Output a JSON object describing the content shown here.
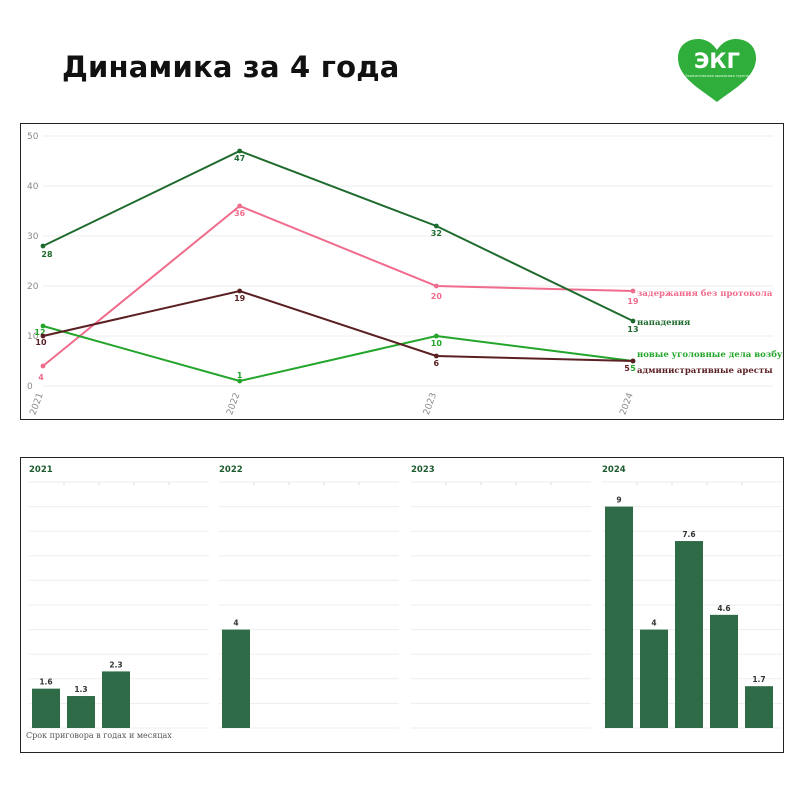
{
  "title": "Динамика за 4 года",
  "logo": {
    "text": "ЭКГ",
    "subtext": "Экологическая кризисная группа",
    "color": "#2fae3b"
  },
  "chart_data": [
    {
      "type": "line",
      "x": [
        "2021",
        "2022",
        "2023",
        "2024"
      ],
      "ylim": [
        0,
        50
      ],
      "yticks": [
        0,
        10,
        20,
        30,
        40,
        50
      ],
      "grid": true,
      "series": [
        {
          "name": "задержания без протокола",
          "values": [
            4,
            36,
            20,
            19
          ],
          "color": "#f06c8c"
        },
        {
          "name": "нападения",
          "values": [
            28,
            47,
            32,
            13
          ],
          "color": "#1f6b2e"
        },
        {
          "name": "новые уголовные дела возбуждены",
          "values": [
            12,
            1,
            10,
            5
          ],
          "color": "#22a52a"
        },
        {
          "name": "административные аресты",
          "values": [
            10,
            19,
            6,
            5
          ],
          "color": "#5a1f22"
        }
      ]
    },
    {
      "type": "bar",
      "caption": "Срок приговора в годах и месяцах",
      "ylim": [
        0,
        10
      ],
      "grid": true,
      "color": "#2f6b47",
      "panels": [
        {
          "year": "2021",
          "values": [
            1.6,
            1.3,
            2.3
          ]
        },
        {
          "year": "2022",
          "values": [
            4
          ]
        },
        {
          "year": "2023",
          "values": []
        },
        {
          "year": "2024",
          "values": [
            9,
            4,
            7.6,
            4.6,
            1.7
          ]
        }
      ]
    }
  ]
}
